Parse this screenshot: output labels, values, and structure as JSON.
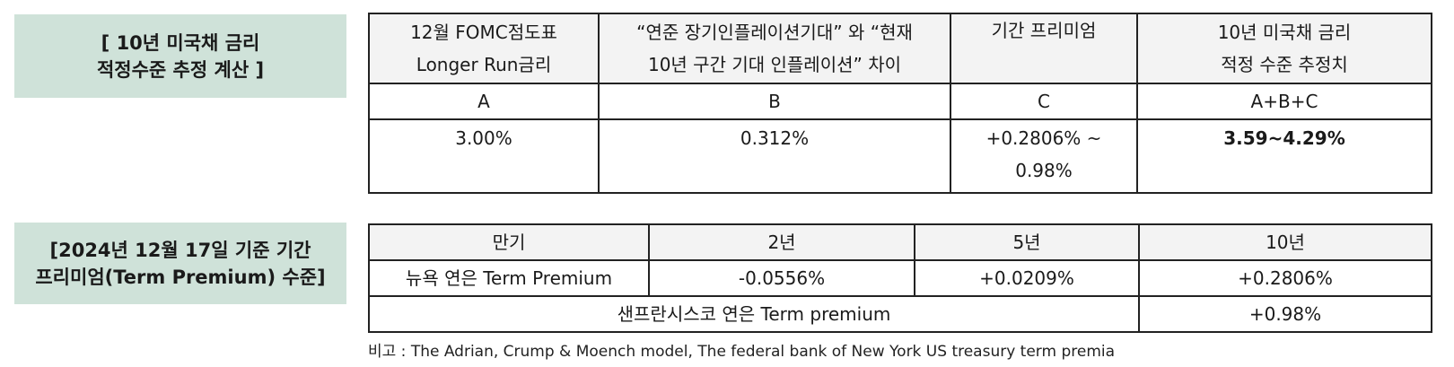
{
  "section1": {
    "label_line1": "[ 10년 미국채 금리",
    "label_line2": "적정수준 추정 계산 ]",
    "headers": [
      {
        "line1": "12월 FOMC점도표",
        "line2": "Longer Run금리"
      },
      {
        "line1": "“연준 장기인플레이션기대” 와 “현재",
        "line2": "10년 구간 기대 인플레이션” 차이"
      },
      {
        "line1": "기간 프리미엄",
        "line2": ""
      },
      {
        "line1": "10년 미국채 금리",
        "line2": "적정 수준 추정치"
      }
    ],
    "codes": [
      "A",
      "B",
      "C",
      "A+B+C"
    ],
    "values": {
      "a": "3.00%",
      "b": "0.312%",
      "c_line1": "+0.2806% ~",
      "c_line2": "0.98%",
      "result": "3.59~4.29%"
    }
  },
  "section2": {
    "label_line1": "[2024년 12월 17일 기준 기간",
    "label_line2": "프리미엄(Term Premium) 수준]",
    "headers": [
      "만기",
      "2년",
      "5년",
      "10년"
    ],
    "ny_row": {
      "label": "뉴욕 연은 Term Premium",
      "values": [
        "-0.0556%",
        "+0.0209%",
        "+0.2806%"
      ]
    },
    "sf_row": {
      "label": "샌프란시스코 연은 Term premium",
      "value": "+0.98%"
    }
  },
  "note": "비고 : The Adrian, Crump & Moench model, The federal bank of New York US treasury term premia"
}
